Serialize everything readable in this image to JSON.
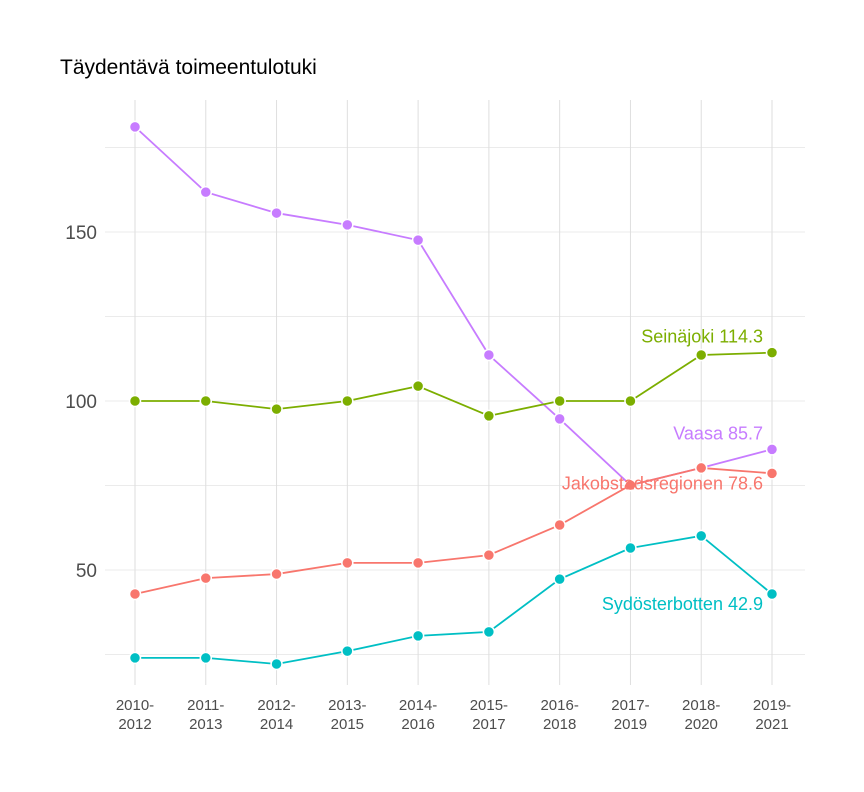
{
  "chart_data": {
    "type": "line",
    "title": "Täydentävä toimeentulotuki",
    "xlabel": "",
    "ylabel": "",
    "categories": [
      "2010-\n2012",
      "2011-\n2013",
      "2012-\n2014",
      "2013-\n2015",
      "2014-\n2016",
      "2015-\n2017",
      "2016-\n2018",
      "2017-\n2019",
      "2018-\n2020",
      "2019-\n2021"
    ],
    "ylim": [
      15,
      188
    ],
    "yticks": [
      50,
      100,
      150
    ],
    "grid": true,
    "legend": "none (end labels)",
    "series": [
      {
        "name": "Vaasa",
        "end_label": "Vaasa 85.7",
        "color": "#C77CFF",
        "values": [
          181.1,
          161.8,
          155.6,
          152.1,
          147.6,
          113.6,
          94.7,
          75.1,
          80.2,
          85.7
        ]
      },
      {
        "name": "Seinäjoki",
        "end_label": "Seinäjoki 114.3",
        "color": "#7CAE00",
        "values": [
          100,
          100,
          97.6,
          100,
          104.4,
          95.6,
          100,
          100,
          113.6,
          114.3
        ]
      },
      {
        "name": "Jakobstadsregionen",
        "end_label": "Jakobstadsregionen 78.6",
        "color": "#F8766D",
        "values": [
          42.9,
          47.6,
          48.8,
          52.1,
          52.1,
          54.4,
          63.3,
          75.1,
          80.2,
          78.6
        ]
      },
      {
        "name": "Sydösterbotten",
        "end_label": "Sydösterbotten 42.9",
        "color": "#00BFC4",
        "values": [
          24.0,
          24.0,
          22.2,
          26.0,
          30.5,
          31.7,
          47.3,
          56.5,
          60.1,
          42.9
        ]
      }
    ]
  }
}
